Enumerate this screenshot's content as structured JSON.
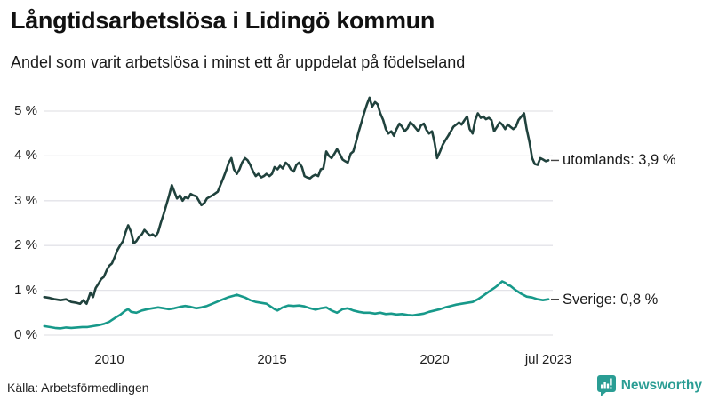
{
  "header": {
    "title": "Långtidsarbetslösa i Lidingö kommun",
    "subtitle": "Andel som varit arbetslösa i minst ett år uppdelat på födelseland"
  },
  "footer": {
    "source": "Källa: Arbetsförmedlingen",
    "brand": "Newsworthy"
  },
  "colors": {
    "utomlands_line": "#20423d",
    "sverige_line": "#17998a",
    "grid": "#e3e3e8",
    "connector": "#444444",
    "brand_teal": "#2a9d94",
    "text": "#1a1a1a"
  },
  "chart_data": {
    "type": "line",
    "title": "Långtidsarbetslösa i Lidingö kommun",
    "subtitle": "Andel som varit arbetslösa i minst ett år uppdelat på födelseland",
    "xlabel": "",
    "ylabel": "",
    "ylim": [
      0,
      5.5
    ],
    "x_range_years": [
      2008.0,
      2023.54
    ],
    "grid": "horizontal",
    "legend_position": "end-of-line-labels",
    "y_ticks": [
      {
        "label": "0 %",
        "value": 0
      },
      {
        "label": "1 %",
        "value": 1
      },
      {
        "label": "2 %",
        "value": 2
      },
      {
        "label": "3 %",
        "value": 3
      },
      {
        "label": "4 %",
        "value": 4
      },
      {
        "label": "5 %",
        "value": 5
      }
    ],
    "x_ticks": [
      {
        "label": "2010",
        "year": 2010
      },
      {
        "label": "2015",
        "year": 2015
      },
      {
        "label": "2020",
        "year": 2020
      },
      {
        "label": "jul 2023",
        "year": 2023.5
      }
    ],
    "series": [
      {
        "name": "utomlands",
        "end_label": "utomlands: 3,9 %",
        "last_value_label": "3,9 %",
        "color": "#20423d",
        "points": [
          [
            2008.0,
            0.85
          ],
          [
            2008.17,
            0.83
          ],
          [
            2008.33,
            0.8
          ],
          [
            2008.5,
            0.78
          ],
          [
            2008.67,
            0.8
          ],
          [
            2008.83,
            0.74
          ],
          [
            2009.0,
            0.72
          ],
          [
            2009.1,
            0.7
          ],
          [
            2009.2,
            0.78
          ],
          [
            2009.3,
            0.7
          ],
          [
            2009.42,
            0.95
          ],
          [
            2009.5,
            0.85
          ],
          [
            2009.58,
            1.05
          ],
          [
            2009.67,
            1.15
          ],
          [
            2009.75,
            1.25
          ],
          [
            2009.83,
            1.3
          ],
          [
            2009.92,
            1.45
          ],
          [
            2010.0,
            1.55
          ],
          [
            2010.08,
            1.6
          ],
          [
            2010.17,
            1.75
          ],
          [
            2010.25,
            1.9
          ],
          [
            2010.33,
            2.0
          ],
          [
            2010.42,
            2.1
          ],
          [
            2010.5,
            2.3
          ],
          [
            2010.58,
            2.45
          ],
          [
            2010.67,
            2.3
          ],
          [
            2010.75,
            2.05
          ],
          [
            2010.83,
            2.1
          ],
          [
            2010.92,
            2.2
          ],
          [
            2011.0,
            2.25
          ],
          [
            2011.08,
            2.35
          ],
          [
            2011.17,
            2.28
          ],
          [
            2011.25,
            2.22
          ],
          [
            2011.33,
            2.25
          ],
          [
            2011.42,
            2.2
          ],
          [
            2011.5,
            2.3
          ],
          [
            2011.58,
            2.5
          ],
          [
            2011.67,
            2.7
          ],
          [
            2011.75,
            2.9
          ],
          [
            2011.83,
            3.1
          ],
          [
            2011.92,
            3.35
          ],
          [
            2012.0,
            3.2
          ],
          [
            2012.08,
            3.05
          ],
          [
            2012.17,
            3.12
          ],
          [
            2012.25,
            3.0
          ],
          [
            2012.33,
            3.08
          ],
          [
            2012.42,
            3.05
          ],
          [
            2012.5,
            3.15
          ],
          [
            2012.58,
            3.12
          ],
          [
            2012.67,
            3.1
          ],
          [
            2012.75,
            3.0
          ],
          [
            2012.83,
            2.9
          ],
          [
            2012.92,
            2.95
          ],
          [
            2013.0,
            3.05
          ],
          [
            2013.17,
            3.12
          ],
          [
            2013.33,
            3.2
          ],
          [
            2013.5,
            3.5
          ],
          [
            2013.58,
            3.65
          ],
          [
            2013.67,
            3.85
          ],
          [
            2013.75,
            3.95
          ],
          [
            2013.83,
            3.7
          ],
          [
            2013.92,
            3.6
          ],
          [
            2014.0,
            3.7
          ],
          [
            2014.08,
            3.85
          ],
          [
            2014.17,
            3.95
          ],
          [
            2014.25,
            3.9
          ],
          [
            2014.33,
            3.8
          ],
          [
            2014.42,
            3.65
          ],
          [
            2014.5,
            3.55
          ],
          [
            2014.58,
            3.6
          ],
          [
            2014.67,
            3.52
          ],
          [
            2014.75,
            3.55
          ],
          [
            2014.83,
            3.6
          ],
          [
            2014.92,
            3.55
          ],
          [
            2015.0,
            3.6
          ],
          [
            2015.08,
            3.75
          ],
          [
            2015.17,
            3.7
          ],
          [
            2015.25,
            3.78
          ],
          [
            2015.33,
            3.72
          ],
          [
            2015.42,
            3.85
          ],
          [
            2015.5,
            3.8
          ],
          [
            2015.58,
            3.7
          ],
          [
            2015.67,
            3.65
          ],
          [
            2015.75,
            3.8
          ],
          [
            2015.83,
            3.85
          ],
          [
            2015.92,
            3.75
          ],
          [
            2016.0,
            3.55
          ],
          [
            2016.08,
            3.52
          ],
          [
            2016.17,
            3.5
          ],
          [
            2016.25,
            3.55
          ],
          [
            2016.33,
            3.58
          ],
          [
            2016.42,
            3.55
          ],
          [
            2016.5,
            3.7
          ],
          [
            2016.58,
            3.72
          ],
          [
            2016.67,
            4.1
          ],
          [
            2016.75,
            4.0
          ],
          [
            2016.83,
            3.95
          ],
          [
            2016.92,
            4.05
          ],
          [
            2017.0,
            4.15
          ],
          [
            2017.08,
            4.05
          ],
          [
            2017.17,
            3.92
          ],
          [
            2017.25,
            3.88
          ],
          [
            2017.33,
            3.85
          ],
          [
            2017.42,
            4.05
          ],
          [
            2017.5,
            4.1
          ],
          [
            2017.58,
            4.3
          ],
          [
            2017.67,
            4.55
          ],
          [
            2017.75,
            4.75
          ],
          [
            2017.83,
            4.95
          ],
          [
            2017.92,
            5.15
          ],
          [
            2018.0,
            5.3
          ],
          [
            2018.08,
            5.1
          ],
          [
            2018.17,
            5.2
          ],
          [
            2018.25,
            5.15
          ],
          [
            2018.33,
            4.95
          ],
          [
            2018.42,
            4.8
          ],
          [
            2018.5,
            4.6
          ],
          [
            2018.58,
            4.5
          ],
          [
            2018.67,
            4.55
          ],
          [
            2018.75,
            4.45
          ],
          [
            2018.83,
            4.6
          ],
          [
            2018.92,
            4.72
          ],
          [
            2019.0,
            4.65
          ],
          [
            2019.08,
            4.55
          ],
          [
            2019.17,
            4.62
          ],
          [
            2019.25,
            4.75
          ],
          [
            2019.33,
            4.7
          ],
          [
            2019.42,
            4.62
          ],
          [
            2019.5,
            4.55
          ],
          [
            2019.58,
            4.68
          ],
          [
            2019.67,
            4.72
          ],
          [
            2019.75,
            4.58
          ],
          [
            2019.83,
            4.5
          ],
          [
            2019.92,
            4.55
          ],
          [
            2020.0,
            4.3
          ],
          [
            2020.08,
            3.95
          ],
          [
            2020.17,
            4.1
          ],
          [
            2020.25,
            4.25
          ],
          [
            2020.33,
            4.35
          ],
          [
            2020.42,
            4.45
          ],
          [
            2020.5,
            4.55
          ],
          [
            2020.58,
            4.65
          ],
          [
            2020.67,
            4.7
          ],
          [
            2020.75,
            4.75
          ],
          [
            2020.83,
            4.7
          ],
          [
            2020.92,
            4.8
          ],
          [
            2021.0,
            4.88
          ],
          [
            2021.08,
            4.6
          ],
          [
            2021.17,
            4.5
          ],
          [
            2021.25,
            4.8
          ],
          [
            2021.33,
            4.95
          ],
          [
            2021.42,
            4.85
          ],
          [
            2021.5,
            4.88
          ],
          [
            2021.58,
            4.82
          ],
          [
            2021.67,
            4.85
          ],
          [
            2021.75,
            4.8
          ],
          [
            2021.83,
            4.55
          ],
          [
            2021.92,
            4.65
          ],
          [
            2022.0,
            4.75
          ],
          [
            2022.08,
            4.7
          ],
          [
            2022.17,
            4.6
          ],
          [
            2022.25,
            4.7
          ],
          [
            2022.33,
            4.65
          ],
          [
            2022.42,
            4.6
          ],
          [
            2022.5,
            4.65
          ],
          [
            2022.58,
            4.8
          ],
          [
            2022.67,
            4.88
          ],
          [
            2022.75,
            4.95
          ],
          [
            2022.83,
            4.6
          ],
          [
            2022.92,
            4.3
          ],
          [
            2023.0,
            3.95
          ],
          [
            2023.08,
            3.82
          ],
          [
            2023.17,
            3.8
          ],
          [
            2023.25,
            3.95
          ],
          [
            2023.33,
            3.92
          ],
          [
            2023.42,
            3.88
          ],
          [
            2023.5,
            3.9
          ]
        ]
      },
      {
        "name": "Sverige",
        "end_label": "Sverige: 0,8 %",
        "last_value_label": "0,8 %",
        "color": "#17998a",
        "points": [
          [
            2008.0,
            0.2
          ],
          [
            2008.17,
            0.18
          ],
          [
            2008.33,
            0.16
          ],
          [
            2008.5,
            0.15
          ],
          [
            2008.67,
            0.17
          ],
          [
            2008.83,
            0.16
          ],
          [
            2009.0,
            0.17
          ],
          [
            2009.17,
            0.18
          ],
          [
            2009.33,
            0.18
          ],
          [
            2009.5,
            0.2
          ],
          [
            2009.67,
            0.22
          ],
          [
            2009.83,
            0.25
          ],
          [
            2010.0,
            0.3
          ],
          [
            2010.17,
            0.38
          ],
          [
            2010.33,
            0.45
          ],
          [
            2010.5,
            0.55
          ],
          [
            2010.58,
            0.58
          ],
          [
            2010.67,
            0.52
          ],
          [
            2010.83,
            0.5
          ],
          [
            2011.0,
            0.55
          ],
          [
            2011.17,
            0.58
          ],
          [
            2011.33,
            0.6
          ],
          [
            2011.5,
            0.62
          ],
          [
            2011.67,
            0.6
          ],
          [
            2011.83,
            0.58
          ],
          [
            2012.0,
            0.6
          ],
          [
            2012.17,
            0.63
          ],
          [
            2012.33,
            0.65
          ],
          [
            2012.5,
            0.63
          ],
          [
            2012.67,
            0.6
          ],
          [
            2012.83,
            0.62
          ],
          [
            2013.0,
            0.65
          ],
          [
            2013.17,
            0.7
          ],
          [
            2013.33,
            0.75
          ],
          [
            2013.5,
            0.8
          ],
          [
            2013.67,
            0.85
          ],
          [
            2013.83,
            0.88
          ],
          [
            2013.92,
            0.9
          ],
          [
            2014.0,
            0.88
          ],
          [
            2014.17,
            0.84
          ],
          [
            2014.33,
            0.78
          ],
          [
            2014.5,
            0.74
          ],
          [
            2014.67,
            0.72
          ],
          [
            2014.83,
            0.7
          ],
          [
            2015.0,
            0.62
          ],
          [
            2015.08,
            0.58
          ],
          [
            2015.17,
            0.55
          ],
          [
            2015.33,
            0.62
          ],
          [
            2015.5,
            0.66
          ],
          [
            2015.67,
            0.65
          ],
          [
            2015.83,
            0.66
          ],
          [
            2016.0,
            0.64
          ],
          [
            2016.17,
            0.6
          ],
          [
            2016.33,
            0.57
          ],
          [
            2016.5,
            0.6
          ],
          [
            2016.67,
            0.62
          ],
          [
            2016.83,
            0.55
          ],
          [
            2017.0,
            0.5
          ],
          [
            2017.17,
            0.58
          ],
          [
            2017.33,
            0.6
          ],
          [
            2017.5,
            0.55
          ],
          [
            2017.67,
            0.52
          ],
          [
            2017.83,
            0.5
          ],
          [
            2018.0,
            0.5
          ],
          [
            2018.17,
            0.48
          ],
          [
            2018.33,
            0.5
          ],
          [
            2018.5,
            0.47
          ],
          [
            2018.67,
            0.48
          ],
          [
            2018.83,
            0.46
          ],
          [
            2019.0,
            0.47
          ],
          [
            2019.17,
            0.45
          ],
          [
            2019.33,
            0.44
          ],
          [
            2019.5,
            0.46
          ],
          [
            2019.67,
            0.48
          ],
          [
            2019.83,
            0.52
          ],
          [
            2020.0,
            0.55
          ],
          [
            2020.17,
            0.58
          ],
          [
            2020.33,
            0.62
          ],
          [
            2020.5,
            0.65
          ],
          [
            2020.67,
            0.68
          ],
          [
            2020.83,
            0.7
          ],
          [
            2021.0,
            0.72
          ],
          [
            2021.17,
            0.74
          ],
          [
            2021.33,
            0.8
          ],
          [
            2021.5,
            0.88
          ],
          [
            2021.67,
            0.97
          ],
          [
            2021.83,
            1.05
          ],
          [
            2021.92,
            1.1
          ],
          [
            2022.0,
            1.15
          ],
          [
            2022.08,
            1.2
          ],
          [
            2022.17,
            1.17
          ],
          [
            2022.25,
            1.12
          ],
          [
            2022.33,
            1.1
          ],
          [
            2022.5,
            1.0
          ],
          [
            2022.67,
            0.92
          ],
          [
            2022.83,
            0.86
          ],
          [
            2023.0,
            0.84
          ],
          [
            2023.17,
            0.8
          ],
          [
            2023.33,
            0.78
          ],
          [
            2023.5,
            0.8
          ]
        ]
      }
    ]
  }
}
